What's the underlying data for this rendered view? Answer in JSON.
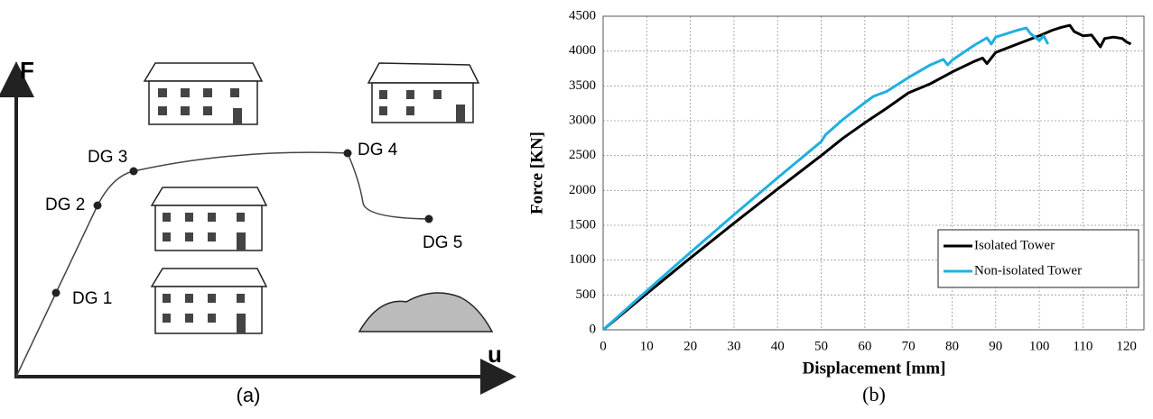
{
  "panel_a": {
    "axis_y": "F",
    "axis_x": "u",
    "caption": "(a)",
    "points": [
      {
        "label": "DG 1"
      },
      {
        "label": "DG 2"
      },
      {
        "label": "DG 3"
      },
      {
        "label": "DG 4"
      },
      {
        "label": "DG 5"
      }
    ]
  },
  "chart_data": {
    "type": "line",
    "caption": "(b)",
    "x_label": "Displacement [mm]",
    "y_label": "Force [KN]",
    "xlim": [
      0,
      124
    ],
    "ylim": [
      0,
      4500
    ],
    "xticks": [
      0,
      10,
      20,
      30,
      40,
      50,
      60,
      70,
      80,
      90,
      100,
      110,
      120
    ],
    "yticks": [
      0,
      500,
      1000,
      1500,
      2000,
      2500,
      3000,
      3500,
      4000,
      4500
    ],
    "grid": true,
    "legend": "lower right",
    "series": [
      {
        "name": "Isolated Tower",
        "color": "#000000",
        "x": [
          0,
          10,
          20,
          30,
          40,
          50,
          55,
          60,
          65,
          70,
          75,
          80,
          85,
          87,
          88,
          90,
          95,
          100,
          103,
          105,
          107,
          108,
          110,
          112,
          114,
          115,
          117,
          119,
          120,
          121
        ],
        "values": [
          0,
          520,
          1030,
          1530,
          2020,
          2500,
          2750,
          2970,
          3180,
          3400,
          3530,
          3700,
          3850,
          3900,
          3820,
          3980,
          4100,
          4220,
          4300,
          4340,
          4370,
          4280,
          4220,
          4230,
          4060,
          4180,
          4200,
          4180,
          4130,
          4100
        ]
      },
      {
        "name": "Non-isolated Tower",
        "color": "#1fb0e0",
        "x": [
          0,
          10,
          20,
          30,
          40,
          50,
          51,
          55,
          60,
          62,
          65,
          70,
          75,
          78,
          79,
          80,
          85,
          88,
          89,
          90,
          95,
          97,
          98,
          100,
          101,
          102
        ],
        "values": [
          0,
          560,
          1110,
          1650,
          2180,
          2700,
          2800,
          3020,
          3260,
          3350,
          3420,
          3620,
          3800,
          3880,
          3800,
          3870,
          4080,
          4190,
          4100,
          4200,
          4300,
          4330,
          4250,
          4150,
          4220,
          4100
        ]
      }
    ]
  }
}
